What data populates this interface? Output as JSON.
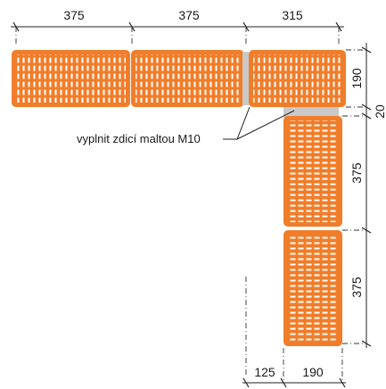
{
  "dimensions": {
    "top": [
      "375",
      "375",
      "315"
    ],
    "right": [
      "190",
      "20",
      "375",
      "375"
    ],
    "bottom": [
      "125",
      "190"
    ]
  },
  "note": "vyplnit zdicí maltou M10",
  "colors": {
    "brick": "#f07d2a",
    "mortar": "#c9c9c9",
    "line": "#222222"
  }
}
